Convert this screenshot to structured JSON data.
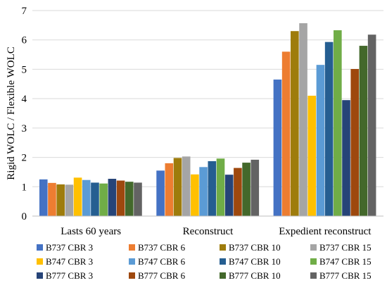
{
  "chart_data": {
    "type": "bar",
    "title": "",
    "xlabel": "",
    "ylabel": "Rigid WOLC / Flexible WOLC",
    "ylim": [
      0,
      7
    ],
    "yticks": [
      0,
      1,
      2,
      3,
      4,
      5,
      6,
      7
    ],
    "grid": "horizontal",
    "legend_position": "bottom",
    "categories": [
      "Lasts 60 years",
      "Reconstruct",
      "Expedient reconstruct"
    ],
    "series": [
      {
        "name": "B737 CBR 3",
        "color": "#4472C4",
        "values": [
          1.25,
          1.55,
          4.65
        ]
      },
      {
        "name": "B737 CBR 6",
        "color": "#ED7D31",
        "values": [
          1.13,
          1.8,
          5.6
        ]
      },
      {
        "name": "B737 CBR 10",
        "color": "#9E7C0C",
        "values": [
          1.08,
          1.98,
          6.3
        ]
      },
      {
        "name": "B737 CBR 15",
        "color": "#A5A5A5",
        "values": [
          1.07,
          2.03,
          6.57
        ]
      },
      {
        "name": "B747 CBR 3",
        "color": "#FFC000",
        "values": [
          1.31,
          1.42,
          4.1
        ]
      },
      {
        "name": "B747 CBR 6",
        "color": "#5B9BD5",
        "values": [
          1.23,
          1.67,
          5.15
        ]
      },
      {
        "name": "B747 CBR 10",
        "color": "#255E91",
        "values": [
          1.14,
          1.87,
          5.93
        ]
      },
      {
        "name": "B747 CBR 15",
        "color": "#70AD47",
        "values": [
          1.11,
          1.96,
          6.33
        ]
      },
      {
        "name": "B777 CBR 3",
        "color": "#264478",
        "values": [
          1.27,
          1.41,
          3.95
        ]
      },
      {
        "name": "B777 CBR 6",
        "color": "#9E480E",
        "values": [
          1.21,
          1.64,
          5.01
        ]
      },
      {
        "name": "B777 CBR 10",
        "color": "#43682B",
        "values": [
          1.17,
          1.82,
          5.8
        ]
      },
      {
        "name": "B777 CBR 15",
        "color": "#636363",
        "values": [
          1.14,
          1.92,
          6.18
        ]
      }
    ]
  }
}
